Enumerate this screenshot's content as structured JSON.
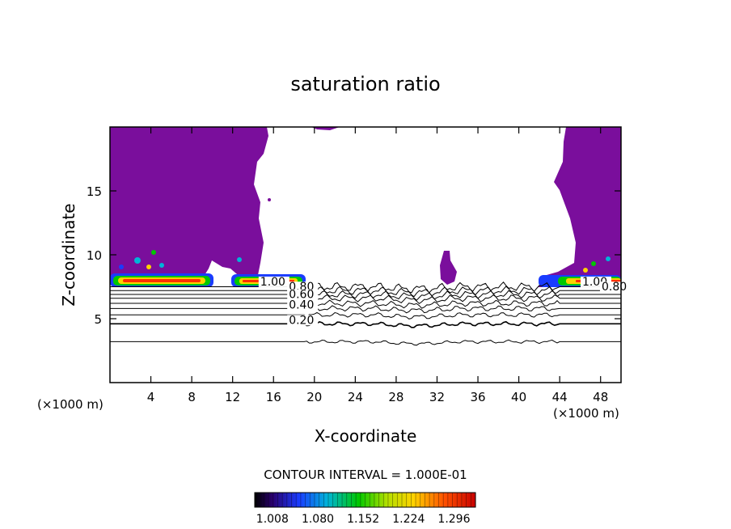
{
  "chart_data": {
    "type": "contour",
    "title": "saturation ratio",
    "xlabel": "X-coordinate",
    "ylabel": "Z-coordinate",
    "x_unit_left": "(×1000 m)",
    "x_unit_right": "(×1000 m)",
    "xlim": [
      0,
      50
    ],
    "ylim": [
      0,
      20
    ],
    "x_ticks": [
      4,
      8,
      12,
      16,
      20,
      24,
      28,
      32,
      36,
      40,
      44,
      48
    ],
    "y_ticks": [
      5,
      10,
      15
    ],
    "contour_interval_text": "CONTOUR INTERVAL = 1.000E-01",
    "colorbar_labels": [
      "1.008",
      "1.080",
      "1.152",
      "1.224",
      "1.296"
    ],
    "colorbar_range": [
      0.98,
      1.33
    ],
    "fill_color": "#7a0e9c",
    "contour_labels": [
      {
        "text": "1.00",
        "x": 14.7,
        "y": 7.6
      },
      {
        "text": "0.80",
        "x": 17.5,
        "y": 7.2
      },
      {
        "text": "0.60",
        "x": 17.5,
        "y": 6.6
      },
      {
        "text": "0.40",
        "x": 17.5,
        "y": 5.8
      },
      {
        "text": "0.20",
        "x": 17.5,
        "y": 4.6
      },
      {
        "text": "1.00",
        "x": 46.2,
        "y": 7.6
      },
      {
        "text": "0.80",
        "x": 48.1,
        "y": 7.2
      }
    ],
    "contour_levels": [
      {
        "level": 0.1,
        "z": 3.2
      },
      {
        "level": 0.2,
        "z": 4.6
      },
      {
        "level": 0.3,
        "z": 5.3
      },
      {
        "level": 0.4,
        "z": 5.8
      },
      {
        "level": 0.5,
        "z": 6.2
      },
      {
        "level": 0.6,
        "z": 6.6
      },
      {
        "level": 0.7,
        "z": 6.9
      },
      {
        "level": 0.8,
        "z": 7.2
      },
      {
        "level": 0.9,
        "z": 7.5
      }
    ]
  }
}
